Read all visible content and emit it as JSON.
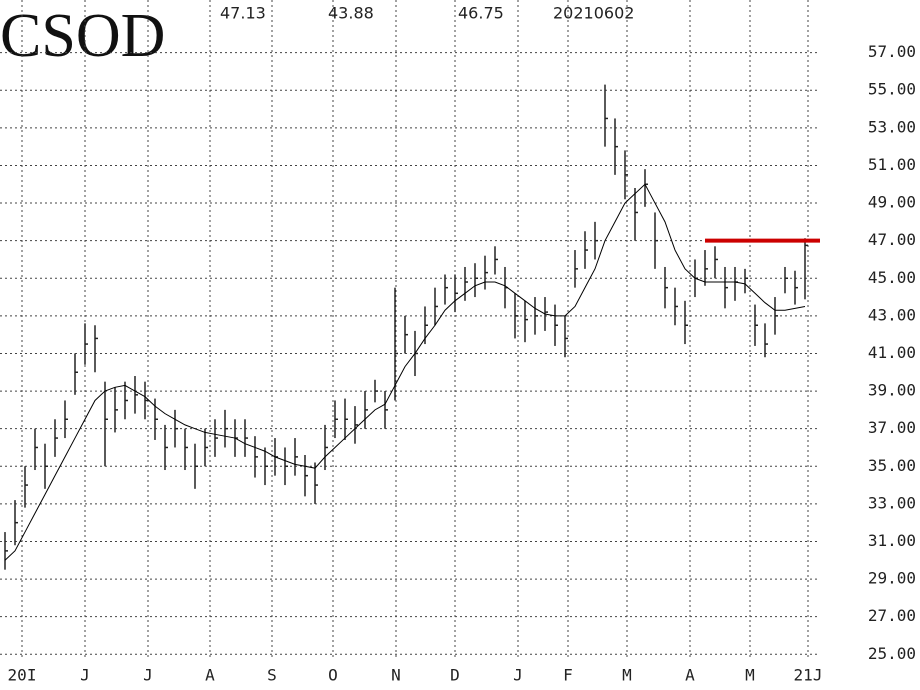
{
  "chart_data": {
    "type": "ohlc",
    "symbol": "CSOD",
    "header": [
      "47.13",
      "43.88",
      "46.75",
      "20210602"
    ],
    "high": [
      31.5,
      33.2,
      35,
      37,
      36.2,
      37.5,
      38.5,
      41,
      42.6,
      42.5,
      39.5,
      39.2,
      39.5,
      39.8,
      39.5,
      38.6,
      37.2,
      38,
      37,
      36.2,
      37,
      37.5,
      38,
      37.5,
      37.5,
      36.6,
      36,
      36.5,
      36,
      36.5,
      35.6,
      35.2,
      37.2,
      38.5,
      38.6,
      38.2,
      39,
      39.6,
      39,
      44.5,
      43,
      42.2,
      43.5,
      44.5,
      45.2,
      45.2,
      45.6,
      45.8,
      46.2,
      46.7,
      45.6,
      44.2,
      43.8,
      44,
      44,
      43.6,
      43,
      46.5,
      47.5,
      48,
      55.3,
      53.5,
      51.8,
      49.8,
      50.8,
      48.5,
      45.6,
      44.5,
      43.8,
      46,
      46.5,
      46.7,
      45.6,
      45.6,
      45.5,
      43.6,
      42.6,
      44,
      45.6,
      45.4,
      47.13
    ],
    "low": [
      29.5,
      30.8,
      32.8,
      34.8,
      33.8,
      35.5,
      36.5,
      38.8,
      40.4,
      40,
      35,
      36.8,
      37.5,
      37.8,
      37.5,
      36.4,
      34.8,
      36,
      34.8,
      33.8,
      35,
      35.5,
      36,
      35.5,
      35.5,
      34.4,
      34,
      34.5,
      34,
      34.5,
      33.4,
      33,
      34.8,
      36.5,
      36.4,
      36.2,
      37,
      38.4,
      37,
      38.5,
      41,
      39.8,
      41.5,
      42.5,
      43.6,
      43.2,
      43.8,
      44,
      44.4,
      45.2,
      43.4,
      41.8,
      41.6,
      42,
      42.2,
      41.4,
      40.8,
      44.5,
      45.5,
      46,
      52,
      50.5,
      49.2,
      47,
      48.8,
      45.5,
      43.4,
      42.5,
      41.5,
      44,
      44.6,
      45,
      43.4,
      43.8,
      44.2,
      41.4,
      40.8,
      42,
      44.2,
      43.6,
      43.88
    ],
    "close": [
      30.5,
      32,
      34,
      36,
      35,
      36.5,
      37.5,
      40,
      41.5,
      41.8,
      37.5,
      38,
      38.5,
      38.8,
      38.5,
      37.5,
      36,
      37,
      36,
      35,
      36,
      36.5,
      37,
      36.5,
      36.5,
      35.5,
      35,
      35.5,
      35,
      35.5,
      34.5,
      34,
      36,
      37.5,
      37.5,
      37.2,
      38,
      39,
      38,
      41,
      42,
      41,
      42.5,
      43.5,
      44.5,
      44.2,
      44.8,
      45,
      45.3,
      46,
      44.5,
      43,
      42.8,
      43,
      43.2,
      42.5,
      41.8,
      45.5,
      46.5,
      47,
      53.5,
      52,
      50.5,
      48.5,
      50,
      47,
      44.5,
      43.5,
      42.5,
      45,
      45.5,
      46,
      44.5,
      44.8,
      45,
      42.5,
      41.5,
      43,
      45,
      44.5,
      46.75
    ],
    "moving_average": [
      30,
      30.5,
      31.5,
      32.5,
      33.5,
      34.5,
      35.5,
      36.5,
      37.5,
      38.5,
      39,
      39.2,
      39.3,
      39,
      38.7,
      38.2,
      37.8,
      37.5,
      37.2,
      37,
      36.8,
      36.7,
      36.6,
      36.5,
      36.2,
      36,
      35.8,
      35.5,
      35.3,
      35.1,
      35,
      34.9,
      35.5,
      36,
      36.5,
      37,
      37.5,
      38,
      38.3,
      39.3,
      40.3,
      41,
      41.8,
      42.5,
      43.3,
      43.8,
      44.2,
      44.6,
      44.8,
      44.8,
      44.6,
      44.2,
      43.8,
      43.4,
      43.1,
      43,
      43,
      43.5,
      44.5,
      45.5,
      47,
      48,
      49,
      49.5,
      50,
      49,
      48,
      46.5,
      45.5,
      45,
      44.8,
      44.8,
      44.8,
      44.8,
      44.7,
      44.2,
      43.7,
      43.3,
      43.3,
      43.4,
      43.5
    ],
    "bar_color": "#222222",
    "ma_color": "#000000",
    "hline": {
      "value": 47,
      "from": 70,
      "color": "#cc0000"
    },
    "xlim": [
      -0.5,
      81.5
    ],
    "xticks": [
      {
        "value": 1.7,
        "label": "20I"
      },
      {
        "value": 8,
        "label": "J"
      },
      {
        "value": 14.3,
        "label": "J"
      },
      {
        "value": 20.5,
        "label": "A"
      },
      {
        "value": 26.7,
        "label": "S"
      },
      {
        "value": 32.8,
        "label": "O"
      },
      {
        "value": 39.1,
        "label": "N"
      },
      {
        "value": 45,
        "label": "D"
      },
      {
        "value": 51.3,
        "label": "J"
      },
      {
        "value": 56.3,
        "label": "F"
      },
      {
        "value": 62.2,
        "label": "M"
      },
      {
        "value": 68.5,
        "label": "A"
      },
      {
        "value": 74.5,
        "label": "M"
      },
      {
        "value": 80.3,
        "label": "21J"
      }
    ],
    "ylim": [
      23.1,
      59.8
    ],
    "yticks": [
      {
        "value": 25,
        "label": "25.00"
      },
      {
        "value": 27,
        "label": "27.00"
      },
      {
        "value": 29,
        "label": "29.00"
      },
      {
        "value": 31,
        "label": "31.00"
      },
      {
        "value": 33,
        "label": "33.00"
      },
      {
        "value": 35,
        "label": "35.00"
      },
      {
        "value": 37,
        "label": "37.00"
      },
      {
        "value": 39,
        "label": "39.00"
      },
      {
        "value": 41,
        "label": "41.00"
      },
      {
        "value": 43,
        "label": "43.00"
      },
      {
        "value": 45,
        "label": "45.00"
      },
      {
        "value": 47,
        "label": "47.00"
      },
      {
        "value": 49,
        "label": "49.00"
      },
      {
        "value": 51,
        "label": "51.00"
      },
      {
        "value": 53,
        "label": "53.00"
      },
      {
        "value": 55,
        "label": "55.00"
      },
      {
        "value": 57,
        "label": "57.00"
      }
    ],
    "grid": true
  }
}
